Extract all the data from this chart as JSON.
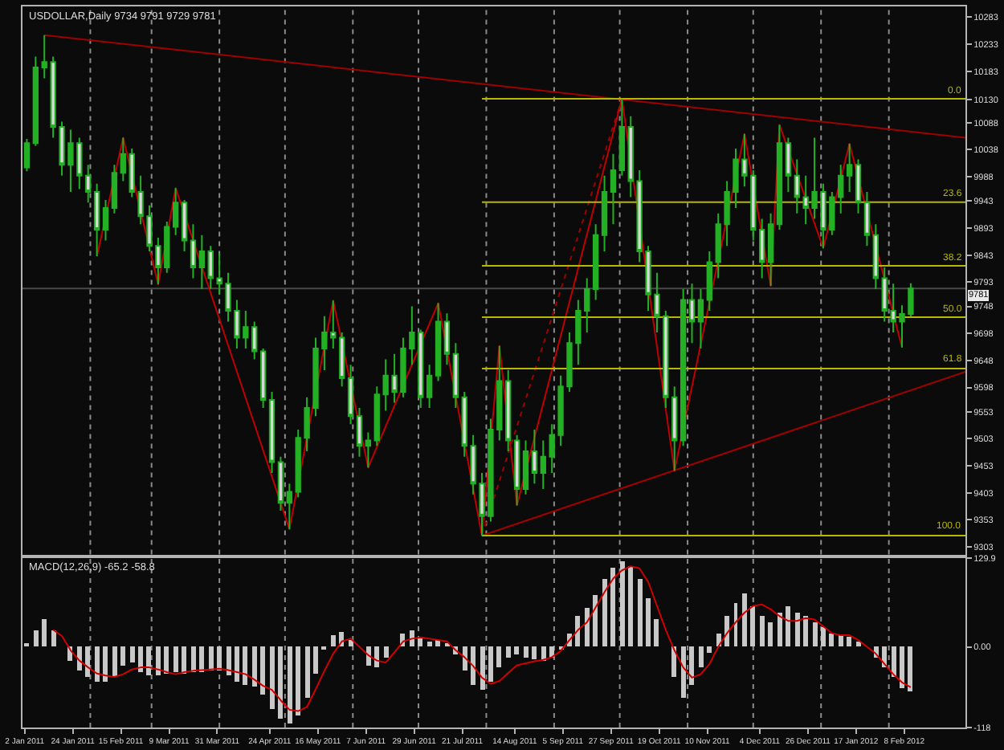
{
  "chart_data": [
    {
      "type": "candlestick",
      "title": "USDOLLAR,Daily 9734 9791 9729 9781",
      "color": "#24b024",
      "colors": [
        "#24b024",
        "#24b024",
        "#24b024",
        "#d8d8d8",
        "#d8d8d8",
        "#24b024",
        "#d8d8d8",
        "#d8d8d8",
        "#d8d8d8",
        "#24b024",
        "#24b024",
        "#24b024",
        "#d8d8d8",
        "#d8d8d8",
        "#d8d8d8",
        "#d8d8d8",
        "#24b024",
        "#24b024",
        "#d8d8d8",
        "#d8d8d8",
        "#24b024",
        "#d8d8d8",
        "#d8d8d8",
        "#d8d8d8",
        "#d8d8d8",
        "#24b024",
        "#d8d8d8",
        "#d8d8d8",
        "#d8d8d8",
        "#d8d8d8",
        "#24b024",
        "#24b024",
        "#24b024",
        "#24b024",
        "#24b024",
        "#d8d8d8",
        "#d8d8d8",
        "#d8d8d8",
        "#d8d8d8",
        "#24b024",
        "#24b024",
        "#24b024",
        "#d8d8d8",
        "#24b024",
        "#24b024",
        "#d8d8d8",
        "#24b024",
        "#24b024",
        "#d8d8d8",
        "#d8d8d8",
        "#d8d8d8",
        "#d8d8d8",
        "#d8d8d8",
        "#24b024",
        "#24b024",
        "#d8d8d8",
        "#d8d8d8",
        "#24b024",
        "#d8d8d8",
        "#24b024",
        "#24b024",
        "#24b024",
        "#24b024",
        "#24b024",
        "#24b024",
        "#24b024",
        "#24b024",
        "#24b024",
        "#24b024",
        "#d8d8d8",
        "#d8d8d8",
        "#d8d8d8",
        "#d8d8d8",
        "#d8d8d8",
        "#d8d8d8",
        "#24b024",
        "#d8d8d8",
        "#24b024",
        "#24b024",
        "#24b024",
        "#24b024",
        "#24b024",
        "#d8d8d8",
        "#d8d8d8",
        "#d8d8d8",
        "#24b024",
        "#24b024",
        "#d8d8d8",
        "#d8d8d8",
        "#d8d8d8",
        "#24b024",
        "#d8d8d8",
        "#24b024",
        "#24b024",
        "#24b024",
        "#d8d8d8",
        "#d8d8d8",
        "#d8d8d8",
        "#d8d8d8",
        "#d8d8d8",
        "#24b024",
        "#24b024"
      ],
      "x": [
        "2011-01-03",
        "2011-01-07",
        "2011-01-11",
        "2011-01-15",
        "2011-01-19",
        "2011-01-23",
        "2011-01-27",
        "2011-01-31",
        "2011-02-04",
        "2011-02-08",
        "2011-02-12",
        "2011-02-16",
        "2011-02-20",
        "2011-02-24",
        "2011-02-28",
        "2011-03-04",
        "2011-03-08",
        "2011-03-12",
        "2011-03-16",
        "2011-03-20",
        "2011-03-24",
        "2011-03-28",
        "2011-04-01",
        "2011-04-05",
        "2011-04-09",
        "2011-04-13",
        "2011-04-17",
        "2011-04-21",
        "2011-04-25",
        "2011-04-29",
        "2011-05-03",
        "2011-05-07",
        "2011-05-11",
        "2011-05-15",
        "2011-05-19",
        "2011-05-23",
        "2011-05-27",
        "2011-05-31",
        "2011-06-04",
        "2011-06-08",
        "2011-06-12",
        "2011-06-16",
        "2011-06-20",
        "2011-06-24",
        "2011-06-28",
        "2011-07-02",
        "2011-07-06",
        "2011-07-10",
        "2011-07-14",
        "2011-07-18",
        "2011-07-22",
        "2011-07-26",
        "2011-07-30",
        "2011-08-03",
        "2011-08-07",
        "2011-08-11",
        "2011-08-15",
        "2011-08-19",
        "2011-08-23",
        "2011-08-27",
        "2011-08-31",
        "2011-09-04",
        "2011-09-08",
        "2011-09-12",
        "2011-09-16",
        "2011-09-20",
        "2011-09-24",
        "2011-09-28",
        "2011-10-02",
        "2011-10-06",
        "2011-10-10",
        "2011-10-14",
        "2011-10-18",
        "2011-10-22",
        "2011-10-26",
        "2011-10-30",
        "2011-11-03",
        "2011-11-07",
        "2011-11-11",
        "2011-11-15",
        "2011-11-19",
        "2011-11-23",
        "2011-11-27",
        "2011-12-01",
        "2011-12-05",
        "2011-12-09",
        "2011-12-13",
        "2011-12-17",
        "2011-12-21",
        "2011-12-25",
        "2011-12-29",
        "2012-01-02",
        "2012-01-06",
        "2012-01-10",
        "2012-01-14",
        "2012-01-18",
        "2012-01-22",
        "2012-01-26",
        "2012-01-30",
        "2012-02-03",
        "2012-02-07",
        "2012-02-11"
      ],
      "ohlc": [
        [
          10005,
          10058,
          9998,
          10050
        ],
        [
          10050,
          10210,
          10045,
          10190
        ],
        [
          10190,
          10250,
          10170,
          10200
        ],
        [
          10200,
          10210,
          10060,
          10080
        ],
        [
          10080,
          10090,
          9990,
          10010
        ],
        [
          10010,
          10075,
          9960,
          10050
        ],
        [
          10050,
          10060,
          9965,
          9990
        ],
        [
          9990,
          10010,
          9940,
          9960
        ],
        [
          9960,
          9975,
          9841,
          9890
        ],
        [
          9890,
          9945,
          9870,
          9930
        ],
        [
          9930,
          10010,
          9920,
          9995
        ],
        [
          9995,
          10060,
          9980,
          10030
        ],
        [
          10030,
          10040,
          9950,
          9960
        ],
        [
          9960,
          9990,
          9900,
          9915
        ],
        [
          9915,
          9935,
          9850,
          9860
        ],
        [
          9860,
          9875,
          9789,
          9820
        ],
        [
          9820,
          9905,
          9810,
          9895
        ],
        [
          9895,
          9967,
          9880,
          9940
        ],
        [
          9940,
          9945,
          9850,
          9870
        ],
        [
          9870,
          9900,
          9800,
          9820
        ],
        [
          9820,
          9880,
          9780,
          9850
        ],
        [
          9850,
          9860,
          9780,
          9800
        ],
        [
          9800,
          9845,
          9770,
          9790
        ],
        [
          9790,
          9810,
          9720,
          9740
        ],
        [
          9740,
          9760,
          9670,
          9690
        ],
        [
          9690,
          9740,
          9670,
          9710
        ],
        [
          9710,
          9720,
          9650,
          9665
        ],
        [
          9665,
          9670,
          9560,
          9575
        ],
        [
          9575,
          9590,
          9440,
          9460
        ],
        [
          9460,
          9470,
          9370,
          9385
        ],
        [
          9385,
          9420,
          9336,
          9405
        ],
        [
          9405,
          9520,
          9395,
          9505
        ],
        [
          9505,
          9580,
          9480,
          9560
        ],
        [
          9560,
          9690,
          9545,
          9670
        ],
        [
          9670,
          9730,
          9630,
          9700
        ],
        [
          9700,
          9759,
          9670,
          9690
        ],
        [
          9690,
          9700,
          9600,
          9615
        ],
        [
          9615,
          9640,
          9530,
          9545
        ],
        [
          9545,
          9560,
          9470,
          9490
        ],
        [
          9490,
          9515,
          9450,
          9500
        ],
        [
          9500,
          9600,
          9490,
          9585
        ],
        [
          9585,
          9650,
          9555,
          9620
        ],
        [
          9620,
          9660,
          9570,
          9590
        ],
        [
          9590,
          9690,
          9580,
          9670
        ],
        [
          9670,
          9748,
          9640,
          9700
        ],
        [
          9700,
          9705,
          9560,
          9580
        ],
        [
          9580,
          9640,
          9560,
          9620
        ],
        [
          9620,
          9754,
          9610,
          9720
        ],
        [
          9720,
          9735,
          9640,
          9660
        ],
        [
          9660,
          9680,
          9560,
          9580
        ],
        [
          9580,
          9590,
          9470,
          9490
        ],
        [
          9490,
          9510,
          9400,
          9420
        ],
        [
          9420,
          9440,
          9324,
          9360
        ],
        [
          9360,
          9540,
          9350,
          9520
        ],
        [
          9520,
          9675,
          9500,
          9610
        ],
        [
          9610,
          9630,
          9480,
          9500
        ],
        [
          9500,
          9510,
          9380,
          9410
        ],
        [
          9410,
          9500,
          9400,
          9480
        ],
        [
          9480,
          9520,
          9420,
          9440
        ],
        [
          9440,
          9500,
          9410,
          9470
        ],
        [
          9470,
          9530,
          9440,
          9510
        ],
        [
          9510,
          9620,
          9490,
          9600
        ],
        [
          9600,
          9700,
          9590,
          9680
        ],
        [
          9680,
          9760,
          9640,
          9740
        ],
        [
          9740,
          9800,
          9700,
          9780
        ],
        [
          9780,
          9900,
          9760,
          9880
        ],
        [
          9880,
          9990,
          9850,
          9960
        ],
        [
          9960,
          10030,
          9900,
          10000
        ],
        [
          10000,
          10132,
          9990,
          10080
        ],
        [
          10080,
          10100,
          9950,
          9980
        ],
        [
          9980,
          10000,
          9830,
          9850
        ],
        [
          9850,
          9860,
          9740,
          9770
        ],
        [
          9770,
          9810,
          9700,
          9730
        ],
        [
          9730,
          9740,
          9560,
          9580
        ],
        [
          9580,
          9600,
          9444,
          9500
        ],
        [
          9500,
          9780,
          9490,
          9760
        ],
        [
          9760,
          9790,
          9680,
          9720
        ],
        [
          9720,
          9780,
          9670,
          9760
        ],
        [
          9760,
          9850,
          9740,
          9830
        ],
        [
          9830,
          9920,
          9800,
          9900
        ],
        [
          9900,
          9980,
          9860,
          9960
        ],
        [
          9960,
          10040,
          9930,
          10020
        ],
        [
          10020,
          10067,
          9970,
          9990
        ],
        [
          9990,
          10000,
          9870,
          9890
        ],
        [
          9890,
          9910,
          9800,
          9830
        ],
        [
          9830,
          9920,
          9786,
          9900
        ],
        [
          9900,
          10084,
          9890,
          10050
        ],
        [
          10050,
          10060,
          9960,
          9990
        ],
        [
          9990,
          10020,
          9920,
          9950
        ],
        [
          9950,
          9990,
          9900,
          9930
        ],
        [
          9930,
          10060,
          9910,
          9960
        ],
        [
          9960,
          9975,
          9856,
          9890
        ],
        [
          9890,
          9960,
          9880,
          9950
        ],
        [
          9950,
          10010,
          9920,
          9990
        ],
        [
          9990,
          10049,
          9960,
          10010
        ],
        [
          10010,
          10020,
          9920,
          9940
        ],
        [
          9940,
          9960,
          9860,
          9880
        ],
        [
          9880,
          9900,
          9780,
          9800
        ],
        [
          9800,
          9820,
          9720,
          9740
        ],
        [
          9740,
          9790,
          9700,
          9720
        ],
        [
          9720,
          9750,
          9672,
          9734
        ],
        [
          9734,
          9791,
          9729,
          9781
        ]
      ],
      "xlim": [
        "2011-01-01",
        "2012-03-07"
      ],
      "ylim": [
        9289,
        10303
      ],
      "yticks": [
        10283,
        10233,
        10183,
        10130,
        10088,
        10038,
        9988,
        9943,
        9893,
        9843,
        9793,
        9748,
        9698,
        9648,
        9598,
        9553,
        9503,
        9453,
        9403,
        9353,
        9303
      ],
      "tick_labels": "y",
      "ref_lines": [
        {
          "axis": "y",
          "value": 9781,
          "label": "9781",
          "color": "#4a4a4a"
        },
        {
          "axis": "x",
          "value": "2011-02-01",
          "color": "#8c8c8c",
          "line_style": "dotted"
        },
        {
          "axis": "x",
          "value": "2011-03-01",
          "color": "#8c8c8c",
          "line_style": "dotted"
        },
        {
          "axis": "x",
          "value": "2011-04-01",
          "color": "#8c8c8c",
          "line_style": "dotted"
        },
        {
          "axis": "x",
          "value": "2011-05-01",
          "color": "#8c8c8c",
          "line_style": "dotted"
        },
        {
          "axis": "x",
          "value": "2011-06-01",
          "color": "#8c8c8c",
          "line_style": "dotted"
        },
        {
          "axis": "x",
          "value": "2011-07-01",
          "color": "#8c8c8c",
          "line_style": "dotted"
        },
        {
          "axis": "x",
          "value": "2011-08-01",
          "color": "#8c8c8c",
          "line_style": "dotted"
        },
        {
          "axis": "x",
          "value": "2011-09-01",
          "color": "#8c8c8c",
          "line_style": "dotted"
        },
        {
          "axis": "x",
          "value": "2011-10-01",
          "color": "#8c8c8c",
          "line_style": "dotted"
        },
        {
          "axis": "x",
          "value": "2011-11-01",
          "color": "#8c8c8c",
          "line_style": "dotted"
        },
        {
          "axis": "x",
          "value": "2011-12-01",
          "color": "#8c8c8c",
          "line_style": "dotted"
        },
        {
          "axis": "x",
          "value": "2012-01-01",
          "color": "#8c8c8c",
          "line_style": "dotted"
        },
        {
          "axis": "x",
          "value": "2012-02-01",
          "color": "#8c8c8c",
          "line_style": "dotted"
        }
      ],
      "series": [
        {
          "type": "line",
          "color": "#a00000",
          "x": [
            "2011-01-11",
            "2012-03-07"
          ],
          "values": [
            10250,
            10060
          ]
        },
        {
          "type": "line",
          "color": "#a00000",
          "x": [
            "2011-07-30",
            "2012-03-07"
          ],
          "values": [
            9324,
            9627
          ]
        },
        {
          "type": "line",
          "color": "#a00000",
          "line_style": "dotted",
          "x": [
            "2011-07-30",
            "2011-10-02"
          ],
          "values": [
            9324,
            10132
          ]
        },
        {
          "type": "line",
          "color": "#c00000",
          "x": [
            "2011-02-04",
            "2011-02-16",
            "2011-03-04",
            "2011-03-12",
            "2011-05-03",
            "2011-05-23",
            "2011-06-08",
            "2011-07-10",
            "2011-07-30",
            "2011-08-07",
            "2011-08-15",
            "2011-10-02",
            "2011-10-26",
            "2011-11-27",
            "2011-12-09",
            "2011-12-13",
            "2012-01-02",
            "2012-01-14",
            "2012-02-07"
          ],
          "values": [
            9841,
            10060,
            9789,
            9967,
            9336,
            9759,
            9450,
            9754,
            9324,
            9675,
            9380,
            10132,
            9444,
            10067,
            9786,
            10084,
            9856,
            10049,
            9672
          ]
        },
        {
          "type": "line",
          "name": "0.0",
          "color": "#b8b800",
          "x": [
            "2011-07-30",
            "2012-03-07"
          ],
          "values": [
            10132,
            10132
          ]
        },
        {
          "type": "line",
          "name": "23.6",
          "color": "#b8b800",
          "x": [
            "2011-07-30",
            "2012-03-07"
          ],
          "values": [
            9941,
            9941
          ]
        },
        {
          "type": "line",
          "name": "38.2",
          "color": "#b8b800",
          "x": [
            "2011-07-30",
            "2012-03-07"
          ],
          "values": [
            9823,
            9823
          ]
        },
        {
          "type": "line",
          "name": "50.0",
          "color": "#b8b800",
          "x": [
            "2011-07-30",
            "2012-03-07"
          ],
          "values": [
            9728,
            9728
          ]
        },
        {
          "type": "line",
          "name": "61.8",
          "color": "#b8b800",
          "x": [
            "2011-07-30",
            "2012-03-07"
          ],
          "values": [
            9633,
            9633
          ]
        },
        {
          "type": "line",
          "name": "100.0",
          "color": "#b8b800",
          "x": [
            "2011-07-30",
            "2012-03-07"
          ],
          "values": [
            9324,
            9324
          ]
        }
      ]
    },
    {
      "type": "bar",
      "title": "MACD(12,26,9) -65.2 -58.8",
      "x": [
        "2011-01-03",
        "2011-01-07",
        "2011-01-11",
        "2011-01-15",
        "2011-01-19",
        "2011-01-23",
        "2011-01-27",
        "2011-01-31",
        "2011-02-04",
        "2011-02-08",
        "2011-02-12",
        "2011-02-16",
        "2011-02-20",
        "2011-02-24",
        "2011-02-28",
        "2011-03-04",
        "2011-03-08",
        "2011-03-12",
        "2011-03-16",
        "2011-03-20",
        "2011-03-24",
        "2011-03-28",
        "2011-04-01",
        "2011-04-05",
        "2011-04-09",
        "2011-04-13",
        "2011-04-17",
        "2011-04-21",
        "2011-04-25",
        "2011-04-29",
        "2011-05-03",
        "2011-05-07",
        "2011-05-11",
        "2011-05-15",
        "2011-05-19",
        "2011-05-23",
        "2011-05-27",
        "2011-05-31",
        "2011-06-04",
        "2011-06-08",
        "2011-06-12",
        "2011-06-16",
        "2011-06-20",
        "2011-06-24",
        "2011-06-28",
        "2011-07-02",
        "2011-07-06",
        "2011-07-10",
        "2011-07-14",
        "2011-07-18",
        "2011-07-22",
        "2011-07-26",
        "2011-07-30",
        "2011-08-03",
        "2011-08-07",
        "2011-08-11",
        "2011-08-15",
        "2011-08-19",
        "2011-08-23",
        "2011-08-27",
        "2011-08-31",
        "2011-09-04",
        "2011-09-08",
        "2011-09-12",
        "2011-09-16",
        "2011-09-20",
        "2011-09-24",
        "2011-09-28",
        "2011-10-02",
        "2011-10-06",
        "2011-10-10",
        "2011-10-14",
        "2011-10-18",
        "2011-10-22",
        "2011-10-26",
        "2011-10-30",
        "2011-11-03",
        "2011-11-07",
        "2011-11-11",
        "2011-11-15",
        "2011-11-19",
        "2011-11-23",
        "2011-11-27",
        "2011-12-01",
        "2011-12-05",
        "2011-12-09",
        "2011-12-13",
        "2011-12-17",
        "2011-12-21",
        "2011-12-25",
        "2011-12-29",
        "2012-01-02",
        "2012-01-06",
        "2012-01-10",
        "2012-01-14",
        "2012-01-18",
        "2012-01-22",
        "2012-01-26",
        "2012-01-30",
        "2012-02-03",
        "2012-02-07",
        "2012-02-11"
      ],
      "series": [
        {
          "type": "bar",
          "color": "#c8c8c8",
          "values": [
            5,
            25,
            40,
            25,
            0,
            -20,
            -35,
            -45,
            -50,
            -50,
            -45,
            -28,
            -22,
            -38,
            -42,
            -42,
            -40,
            -38,
            -40,
            -38,
            -36,
            -35,
            -35,
            -42,
            -52,
            -56,
            -58,
            -70,
            -90,
            -105,
            -113,
            -100,
            -75,
            -40,
            -5,
            18,
            22,
            10,
            0,
            -28,
            -30,
            -15,
            0,
            20,
            24,
            15,
            8,
            10,
            5,
            -10,
            -35,
            -55,
            -63,
            -50,
            -30,
            -15,
            -12,
            -15,
            -18,
            -20,
            -15,
            -5,
            20,
            45,
            58,
            75,
            100,
            115,
            125,
            118,
            100,
            70,
            40,
            0,
            -45,
            -75,
            -55,
            -30,
            -8,
            20,
            45,
            65,
            78,
            60,
            45,
            36,
            50,
            59,
            50,
            45,
            35,
            30,
            20,
            17,
            15,
            8,
            0,
            -15,
            -30,
            -45,
            -60,
            -65
          ]
        },
        {
          "type": "line",
          "color": "#d00000",
          "values": [
            null,
            null,
            null,
            25,
            16,
            -5,
            -20,
            -30,
            -39,
            -42,
            -44,
            -40,
            -33,
            -30,
            -30,
            -33,
            -37,
            -40,
            -37,
            -35,
            -34,
            -33,
            -32,
            -34,
            -37,
            -40,
            -48,
            -57,
            -63,
            -78,
            -92,
            -94,
            -88,
            -62,
            -35,
            -10,
            8,
            12,
            0,
            -12,
            -20,
            -23,
            -8,
            8,
            12,
            14,
            12,
            10,
            8,
            -5,
            -15,
            -28,
            -45,
            -54,
            -50,
            -38,
            -27,
            -24,
            -21,
            -19,
            -15,
            -6,
            10,
            25,
            36,
            58,
            80,
            100,
            112,
            118,
            115,
            95,
            60,
            25,
            -5,
            -30,
            -45,
            -40,
            -25,
            0,
            20,
            36,
            50,
            60,
            62,
            55,
            45,
            38,
            38,
            42,
            40,
            30,
            20,
            17,
            17,
            10,
            0,
            -10,
            -25,
            -40,
            -52,
            -59
          ]
        }
      ],
      "xlim": [
        "2011-01-01",
        "2012-03-07"
      ],
      "ylim": [
        -118,
        129.9
      ],
      "yticks": [
        129.9,
        {
          "value": 0,
          "label": "0.00"
        },
        -118
      ],
      "xticks": [
        {
          "value": "2011-01-02",
          "label": "2 Jan 2011"
        },
        {
          "value": "2011-01-24",
          "label": "24 Jan 2011"
        },
        {
          "value": "2011-02-15",
          "label": "15 Feb 2011"
        },
        {
          "value": "2011-03-09",
          "label": "9 Mar 2011"
        },
        {
          "value": "2011-03-31",
          "label": "31 Mar 2011"
        },
        {
          "value": "2011-04-24",
          "label": "24 Apr 2011"
        },
        {
          "value": "2011-05-16",
          "label": "16 May 2011"
        },
        {
          "value": "2011-06-07",
          "label": "7 Jun 2011"
        },
        {
          "value": "2011-06-29",
          "label": "29 Jun 2011"
        },
        {
          "value": "2011-07-21",
          "label": "21 Jul 2011"
        },
        {
          "value": "2011-08-14",
          "label": "14 Aug 2011"
        },
        {
          "value": "2011-09-05",
          "label": "5 Sep 2011"
        },
        {
          "value": "2011-09-27",
          "label": "27 Sep 2011"
        },
        {
          "value": "2011-10-19",
          "label": "19 Oct 2011"
        },
        {
          "value": "2011-11-10",
          "label": "10 Nov 2011"
        },
        {
          "value": "2011-12-04",
          "label": "4 Dec 2011"
        },
        {
          "value": "2011-12-26",
          "label": "26 Dec 2011"
        },
        {
          "value": "2012-01-17",
          "label": "17 Jan 2012"
        },
        {
          "value": "2012-02-08",
          "label": "8 Feb 2012"
        }
      ],
      "ref_lines": [
        {
          "axis": "x",
          "value": "2011-02-01",
          "color": "#8c8c8c",
          "line_style": "dotted"
        },
        {
          "axis": "x",
          "value": "2011-03-01",
          "color": "#8c8c8c",
          "line_style": "dotted"
        },
        {
          "axis": "x",
          "value": "2011-04-01",
          "color": "#8c8c8c",
          "line_style": "dotted"
        },
        {
          "axis": "x",
          "value": "2011-05-01",
          "color": "#8c8c8c",
          "line_style": "dotted"
        },
        {
          "axis": "x",
          "value": "2011-06-01",
          "color": "#8c8c8c",
          "line_style": "dotted"
        },
        {
          "axis": "x",
          "value": "2011-07-01",
          "color": "#8c8c8c",
          "line_style": "dotted"
        },
        {
          "axis": "x",
          "value": "2011-08-01",
          "color": "#8c8c8c",
          "line_style": "dotted"
        },
        {
          "axis": "x",
          "value": "2011-09-01",
          "color": "#8c8c8c",
          "line_style": "dotted"
        },
        {
          "axis": "x",
          "value": "2011-10-01",
          "color": "#8c8c8c",
          "line_style": "dotted"
        },
        {
          "axis": "x",
          "value": "2011-11-01",
          "color": "#8c8c8c",
          "line_style": "dotted"
        },
        {
          "axis": "x",
          "value": "2011-12-01",
          "color": "#8c8c8c",
          "line_style": "dotted"
        },
        {
          "axis": "x",
          "value": "2012-01-01",
          "color": "#8c8c8c",
          "line_style": "dotted"
        },
        {
          "axis": "x",
          "value": "2012-02-01",
          "color": "#8c8c8c",
          "line_style": "dotted"
        }
      ]
    }
  ]
}
